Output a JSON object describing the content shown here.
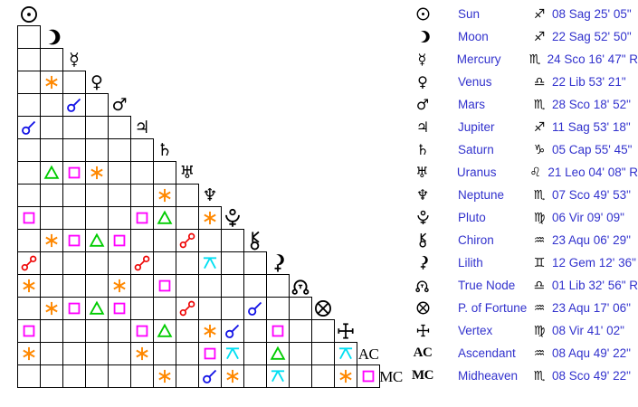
{
  "chart_data": {
    "type": "table",
    "description": "Astrological aspect grid (triangular aspectarian) with planet position list",
    "bodies": [
      {
        "id": "sun",
        "name": "Sun",
        "sign": "Sag",
        "position": "08 Sag 25' 05\""
      },
      {
        "id": "moon",
        "name": "Moon",
        "sign": "Sag",
        "position": "22 Sag 52' 50\""
      },
      {
        "id": "mercury",
        "name": "Mercury",
        "sign": "Sco",
        "position": "24 Sco 16' 47\" R"
      },
      {
        "id": "venus",
        "name": "Venus",
        "sign": "Lib",
        "position": "22 Lib 53' 21\""
      },
      {
        "id": "mars",
        "name": "Mars",
        "sign": "Sco",
        "position": "28 Sco 18' 52\""
      },
      {
        "id": "jupiter",
        "name": "Jupiter",
        "sign": "Sag",
        "position": "11 Sag 53' 18\""
      },
      {
        "id": "saturn",
        "name": "Saturn",
        "sign": "Cap",
        "position": "05 Cap 55' 45\""
      },
      {
        "id": "uranus",
        "name": "Uranus",
        "sign": "Leo",
        "position": "21 Leo 04' 08\" R"
      },
      {
        "id": "neptune",
        "name": "Neptune",
        "sign": "Sco",
        "position": "07 Sco 49' 53\""
      },
      {
        "id": "pluto",
        "name": "Pluto",
        "sign": "Vir",
        "position": "06 Vir 09' 09\""
      },
      {
        "id": "chiron",
        "name": "Chiron",
        "sign": "Aqu",
        "position": "23 Aqu 06' 29\""
      },
      {
        "id": "lilith",
        "name": "Lilith",
        "sign": "Gem",
        "position": "12 Gem 12' 36\""
      },
      {
        "id": "true-node",
        "name": "True Node",
        "sign": "Lib",
        "position": "01 Lib 32' 56\" R"
      },
      {
        "id": "fortune",
        "name": "P. of Fortune",
        "sign": "Aqu",
        "position": "23 Aqu 17' 06\""
      },
      {
        "id": "vertex",
        "name": "Vertex",
        "sign": "Vir",
        "position": "08 Vir 41' 02\""
      },
      {
        "id": "ascendant",
        "name": "Ascendant",
        "sign": "Aqu",
        "position": "08 Aqu 49' 22\"",
        "label": "AC"
      },
      {
        "id": "midheaven",
        "name": "Midheaven",
        "sign": "Sco",
        "position": "08 Sco 49' 22\"",
        "label": "MC"
      }
    ],
    "aspects": [
      {
        "row": 4,
        "col": 2,
        "type": "sextile"
      },
      {
        "row": 5,
        "col": 3,
        "type": "conjunction"
      },
      {
        "row": 6,
        "col": 1,
        "type": "conjunction"
      },
      {
        "row": 8,
        "col": 2,
        "type": "trine"
      },
      {
        "row": 8,
        "col": 3,
        "type": "square"
      },
      {
        "row": 8,
        "col": 4,
        "type": "sextile"
      },
      {
        "row": 9,
        "col": 7,
        "type": "sextile"
      },
      {
        "row": 10,
        "col": 1,
        "type": "square"
      },
      {
        "row": 10,
        "col": 6,
        "type": "square"
      },
      {
        "row": 10,
        "col": 7,
        "type": "trine"
      },
      {
        "row": 10,
        "col": 9,
        "type": "sextile"
      },
      {
        "row": 11,
        "col": 2,
        "type": "sextile"
      },
      {
        "row": 11,
        "col": 3,
        "type": "square"
      },
      {
        "row": 11,
        "col": 4,
        "type": "trine"
      },
      {
        "row": 11,
        "col": 5,
        "type": "square"
      },
      {
        "row": 11,
        "col": 8,
        "type": "opposition"
      },
      {
        "row": 12,
        "col": 1,
        "type": "opposition"
      },
      {
        "row": 12,
        "col": 6,
        "type": "opposition"
      },
      {
        "row": 12,
        "col": 9,
        "type": "quincunx"
      },
      {
        "row": 13,
        "col": 1,
        "type": "sextile"
      },
      {
        "row": 13,
        "col": 5,
        "type": "sextile"
      },
      {
        "row": 13,
        "col": 7,
        "type": "square"
      },
      {
        "row": 14,
        "col": 2,
        "type": "sextile"
      },
      {
        "row": 14,
        "col": 3,
        "type": "square"
      },
      {
        "row": 14,
        "col": 4,
        "type": "trine"
      },
      {
        "row": 14,
        "col": 5,
        "type": "square"
      },
      {
        "row": 14,
        "col": 8,
        "type": "opposition"
      },
      {
        "row": 14,
        "col": 11,
        "type": "conjunction"
      },
      {
        "row": 15,
        "col": 1,
        "type": "square"
      },
      {
        "row": 15,
        "col": 6,
        "type": "square"
      },
      {
        "row": 15,
        "col": 7,
        "type": "trine"
      },
      {
        "row": 15,
        "col": 9,
        "type": "sextile"
      },
      {
        "row": 15,
        "col": 10,
        "type": "conjunction"
      },
      {
        "row": 15,
        "col": 12,
        "type": "square"
      },
      {
        "row": 16,
        "col": 1,
        "type": "sextile"
      },
      {
        "row": 16,
        "col": 6,
        "type": "sextile"
      },
      {
        "row": 16,
        "col": 9,
        "type": "square"
      },
      {
        "row": 16,
        "col": 10,
        "type": "quincunx"
      },
      {
        "row": 16,
        "col": 12,
        "type": "trine"
      },
      {
        "row": 16,
        "col": 15,
        "type": "quincunx"
      },
      {
        "row": 17,
        "col": 7,
        "type": "sextile"
      },
      {
        "row": 17,
        "col": 9,
        "type": "conjunction"
      },
      {
        "row": 17,
        "col": 10,
        "type": "sextile"
      },
      {
        "row": 17,
        "col": 12,
        "type": "quincunx"
      },
      {
        "row": 17,
        "col": 15,
        "type": "sextile"
      },
      {
        "row": 17,
        "col": 16,
        "type": "square"
      }
    ],
    "aspect_colors": {
      "conjunction": "#1414e6",
      "sextile": "#ff8800",
      "square": "#ff00ff",
      "trine": "#00cc00",
      "opposition": "#ee0000",
      "quincunx": "#00dff2"
    },
    "planet_glyph_chars": {
      "mercury": "☿",
      "venus": "♀",
      "mars": "♂",
      "jupiter": "♃",
      "saturn": "♄",
      "uranus": "♅",
      "neptune": "♆"
    },
    "zodiac_glyph_chars": {
      "Sag": "♐",
      "Sco": "♏",
      "Lib": "♎",
      "Cap": "♑",
      "Leo": "♌",
      "Vir": "♍",
      "Aqu": "♒",
      "Gem": "♊"
    },
    "text_color": "#3232cd",
    "grid_line_color": "#000000"
  }
}
